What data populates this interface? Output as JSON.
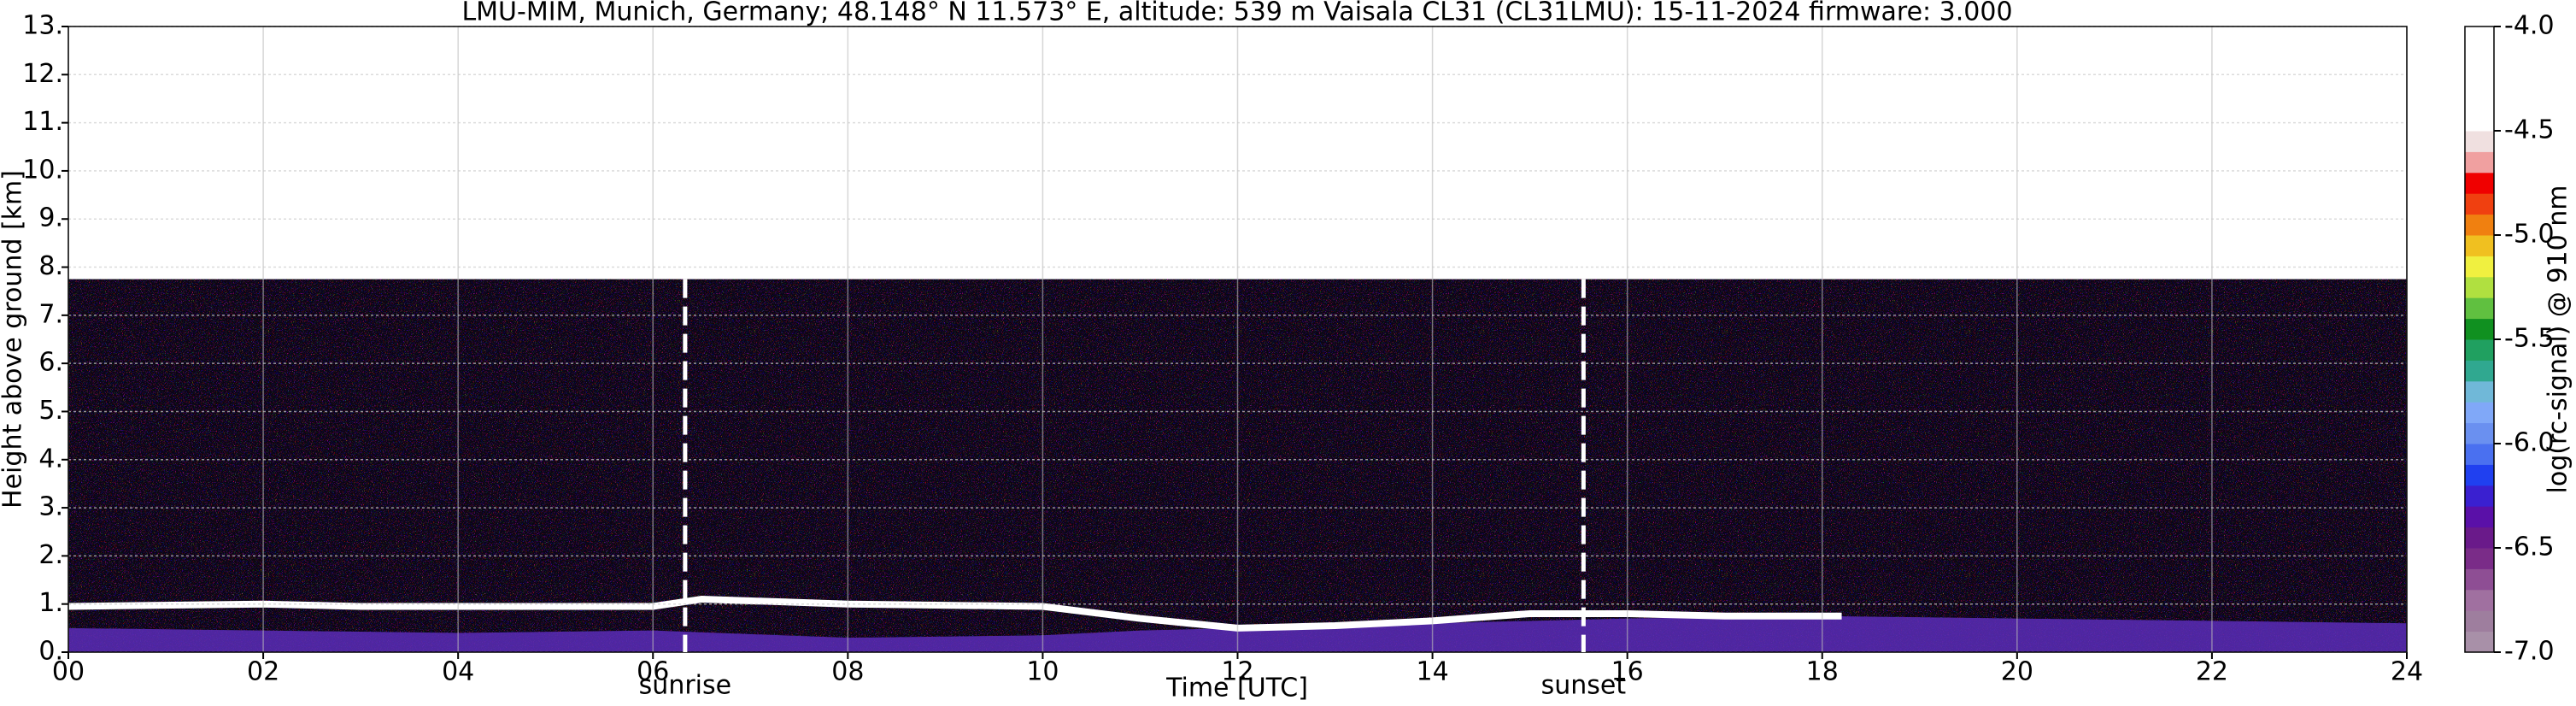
{
  "chart_data": {
    "type": "heatmap",
    "title": "LMU-MIM, Munich, Germany; 48.148° N 11.573° E, altitude: 539 m    Vaisala CL31 (CL31LMU): 15-11-2024    firmware: 3.000",
    "xlabel": "Time [UTC]",
    "ylabel": "Height above ground [km]",
    "colorbar_label": "log(rc-signal) @ 910 nm",
    "xlim": [
      0,
      24
    ],
    "xticks": [
      {
        "value": 0,
        "label": "00"
      },
      {
        "value": 2,
        "label": "02"
      },
      {
        "value": 4,
        "label": "04"
      },
      {
        "value": 6,
        "label": "06"
      },
      {
        "value": 8,
        "label": "08"
      },
      10,
      12,
      14,
      16,
      18,
      20,
      22,
      24
    ],
    "ylim": [
      0,
      13
    ],
    "yticks": [
      {
        "value": 0,
        "label": "0."
      },
      {
        "value": 1,
        "label": "1."
      },
      {
        "value": 2,
        "label": "2."
      },
      {
        "value": 3,
        "label": "3."
      },
      {
        "value": 4,
        "label": "4."
      },
      {
        "value": 5,
        "label": "5."
      },
      {
        "value": 6,
        "label": "6."
      },
      {
        "value": 7,
        "label": "7."
      },
      {
        "value": 8,
        "label": "8."
      },
      {
        "value": 9,
        "label": "9."
      },
      {
        "value": 10,
        "label": "10."
      },
      {
        "value": 11,
        "label": "11."
      },
      {
        "value": 12,
        "label": "12."
      },
      {
        "value": 13,
        "label": "13."
      }
    ],
    "grid": true,
    "clim": [
      -7,
      -4
    ],
    "cticks": [
      {
        "value": -7,
        "label": "-7.0"
      },
      -6.5,
      {
        "value": -6,
        "label": "-6.0"
      },
      -5.5,
      {
        "value": -5,
        "label": "-5.0"
      },
      -4.5,
      {
        "value": -4,
        "label": "-4.0"
      }
    ],
    "colorbar_colors": [
      "#a890a8",
      "#9e7e9e",
      "#a070a0",
      "#8e4e94",
      "#7a2c88",
      "#6a1a8a",
      "#5a10a8",
      "#3a20d0",
      "#2040f0",
      "#4a70f0",
      "#6a90f0",
      "#80a8f8",
      "#70b8d8",
      "#30a890",
      "#20a060",
      "#109020",
      "#60c040",
      "#b0e040",
      "#f0f040",
      "#f0c020",
      "#f08010",
      "#f04010",
      "#f00000",
      "#f0a0a0",
      "#f0e0e0",
      "#ffffff",
      "#ffffff",
      "#ffffff",
      "#ffffff",
      "#ffffff"
    ],
    "noise_top": 7.75,
    "annotations": [
      {
        "text": "sunrise",
        "x": 6.33
      },
      {
        "text": "sunset",
        "x": 15.55
      }
    ],
    "series": [
      {
        "color": "#5a2db8",
        "x": [
          0,
          2,
          4,
          6,
          8,
          10,
          11,
          12,
          14,
          16,
          18,
          20,
          22,
          24
        ],
        "values": [
          0.5,
          0.45,
          0.4,
          0.45,
          0.3,
          0.35,
          0.45,
          0.5,
          0.6,
          0.7,
          0.75,
          0.7,
          0.65,
          0.6
        ]
      },
      {
        "color": "#ffffff",
        "x": [
          0,
          2,
          3,
          6,
          6.5,
          8,
          10,
          11,
          11.5,
          12,
          13,
          14,
          15,
          16,
          17,
          18,
          18.2,
          19,
          24
        ],
        "values": [
          0.95,
          1.0,
          0.95,
          0.95,
          1.1,
          1.0,
          0.95,
          0.7,
          0.6,
          0.5,
          0.55,
          0.65,
          0.8,
          0.8,
          0.75,
          0.75,
          0.75,
          null,
          null
        ]
      }
    ]
  }
}
